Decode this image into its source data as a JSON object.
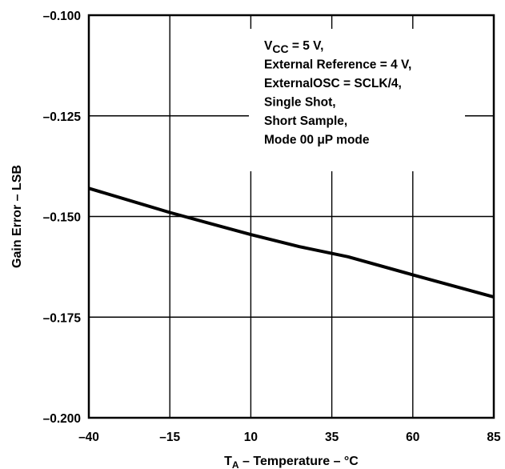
{
  "chart_data": {
    "type": "line",
    "title": "",
    "xlabel": {
      "main": "T",
      "sub": "A",
      "rest": " – Temperature – °C"
    },
    "ylabel": "Gain Error – LSB",
    "xlim": [
      -40,
      85
    ],
    "ylim": [
      -0.2,
      -0.1
    ],
    "x_ticks": [
      -40,
      -15,
      10,
      35,
      60,
      85
    ],
    "x_tick_labels": [
      "–40",
      "–15",
      "10",
      "35",
      "60",
      "85"
    ],
    "y_ticks": [
      -0.1,
      -0.125,
      -0.15,
      -0.175,
      -0.2
    ],
    "y_tick_labels": [
      "–0.100",
      "–0.125",
      "–0.150",
      "–0.175",
      "–0.200"
    ],
    "grid": true,
    "series": [
      {
        "x": [
          -40,
          -15,
          10,
          25,
          40,
          60,
          85
        ],
        "y": [
          -0.143,
          -0.149,
          -0.1545,
          -0.1575,
          -0.16,
          -0.1645,
          -0.17
        ]
      }
    ],
    "annotation": {
      "lines": [
        {
          "main": "V",
          "sub": "CC",
          "rest": " = 5 V,"
        },
        {
          "main": "External Reference = 4 V,"
        },
        {
          "main": "ExternalOSC = SCLK/4,"
        },
        {
          "main": "Single Shot,"
        },
        {
          "main": "Short Sample,"
        },
        {
          "main": "Mode 00 μP mode"
        }
      ]
    }
  }
}
